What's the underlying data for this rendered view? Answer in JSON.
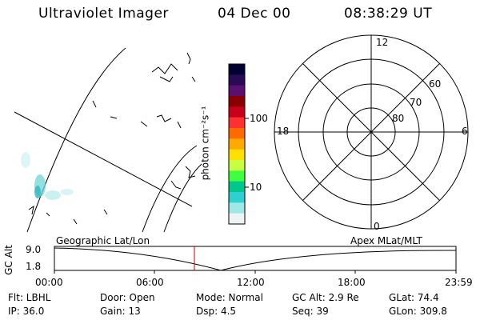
{
  "header": {
    "instrument": "Ultraviolet Imager",
    "date": "04 Dec 00",
    "time": "08:38:29 UT"
  },
  "colorbar": {
    "unit_label": "photon cm⁻²s⁻¹",
    "ticks": [
      "100",
      "10"
    ],
    "colors": [
      "#000033",
      "#2a0a55",
      "#5a1070",
      "#8a0000",
      "#c8001c",
      "#ff3030",
      "#ff6a00",
      "#ffaa00",
      "#ffe000",
      "#c8ff40",
      "#40ff40",
      "#00c88c",
      "#30d0d0",
      "#a0e8e8",
      "#eef4f4"
    ]
  },
  "polar_plot": {
    "mlt_labels": {
      "top": "12",
      "left": "18",
      "right": "6",
      "bottom": "0"
    },
    "lat_labels": [
      "60",
      "70",
      "80"
    ]
  },
  "timeline": {
    "left_label": "Geographic Lat/Lon",
    "right_label": "Apex MLat/MLT",
    "y_axis_title": "GC Alt",
    "y_ticks": [
      "9.0",
      "1.8"
    ],
    "x_ticks": [
      "00:00",
      "06:00",
      "12:00",
      "18:00",
      "23:59"
    ],
    "current_time_color": "#cc0000"
  },
  "info": {
    "flt": "Flt: LBHL",
    "ip": "IP: 36.0",
    "door": "Door: Open",
    "gain": "Gain: 13",
    "mode": "Mode: Normal",
    "dsp": "Dsp:    4.5",
    "gcalt": "GC Alt: 2.9 Re",
    "seq": "Seq: 39",
    "glat": "GLat:  74.4",
    "glon": "GLon: 309.8"
  }
}
